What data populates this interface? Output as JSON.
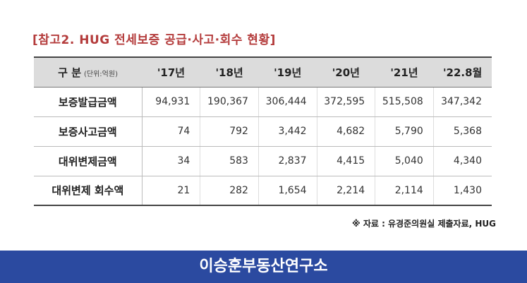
{
  "title": "[참고2. HUG 전세보증 공급·사고·회수 현황]",
  "table": {
    "corner_label": "구 분",
    "unit_label": "(단위:억원)",
    "columns": [
      "'17년",
      "'18년",
      "'19년",
      "'20년",
      "'21년",
      "'22.8월"
    ],
    "rows": [
      {
        "label": "보증발급금액",
        "values": [
          "94,931",
          "190,367",
          "306,444",
          "372,595",
          "515,508",
          "347,342"
        ]
      },
      {
        "label": "보증사고금액",
        "values": [
          "74",
          "792",
          "3,442",
          "4,682",
          "5,790",
          "5,368"
        ]
      },
      {
        "label": "대위변제금액",
        "values": [
          "34",
          "583",
          "2,837",
          "4,415",
          "5,040",
          "4,340"
        ]
      },
      {
        "label": "대위변제 회수액",
        "values": [
          "21",
          "282",
          "1,654",
          "2,214",
          "2,114",
          "1,430"
        ]
      }
    ]
  },
  "source": "※ 자료 : 유경준의원실 제출자료, HUG",
  "footer": "이승훈부동산연구소",
  "colors": {
    "title": "#b43c3c",
    "footer_bg": "#2b4aa0",
    "header_bg": "#dcdcdc"
  }
}
